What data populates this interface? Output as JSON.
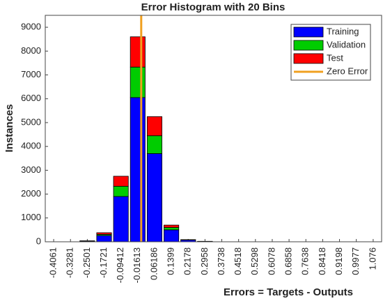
{
  "chart_data": {
    "type": "stacked-histogram",
    "title": "Error Histogram with 20 Bins",
    "x_label": "Errors = Targets - Outputs",
    "y_label": "Instances",
    "x": [
      -0.4061,
      -0.3281,
      -0.2501,
      -0.1721,
      -0.09412,
      -0.01613,
      0.06186,
      0.1399,
      0.2178,
      0.2958,
      0.3738,
      0.4518,
      0.5298,
      0.6078,
      0.6858,
      0.7638,
      0.8418,
      0.9198,
      0.9977,
      1.076
    ],
    "xticks": [
      -0.4061,
      -0.3281,
      -0.2501,
      -0.1721,
      -0.09412,
      -0.01613,
      0.06186,
      0.1399,
      0.2178,
      0.2958,
      0.3738,
      0.4518,
      0.5298,
      0.6078,
      0.6858,
      0.7638,
      0.8418,
      0.9198,
      0.9977,
      1.076
    ],
    "xlim": [
      -0.4451,
      1.1151
    ],
    "ylim": [
      0,
      9500
    ],
    "yticks": [
      0,
      1000,
      2000,
      3000,
      4000,
      5000,
      6000,
      7000,
      8000,
      9000
    ],
    "series": [
      {
        "name": "Training",
        "color": "#0000ff",
        "values": [
          0,
          0,
          30,
          260,
          1900,
          6050,
          3700,
          500,
          70,
          15,
          0,
          0,
          0,
          0,
          0,
          0,
          0,
          0,
          0,
          0
        ]
      },
      {
        "name": "Validation",
        "color": "#00cc00",
        "values": [
          0,
          0,
          5,
          50,
          430,
          1280,
          750,
          100,
          10,
          3,
          0,
          0,
          0,
          0,
          0,
          0,
          0,
          0,
          0,
          0
        ]
      },
      {
        "name": "Test",
        "color": "#ff0000",
        "values": [
          0,
          0,
          5,
          70,
          420,
          1270,
          800,
          100,
          10,
          2,
          0,
          0,
          0,
          0,
          0,
          0,
          0,
          0,
          0,
          0
        ]
      }
    ],
    "reference_line": {
      "name": "Zero Error",
      "x": 0,
      "color": "#f0a020"
    },
    "legend_position": "upper right"
  }
}
